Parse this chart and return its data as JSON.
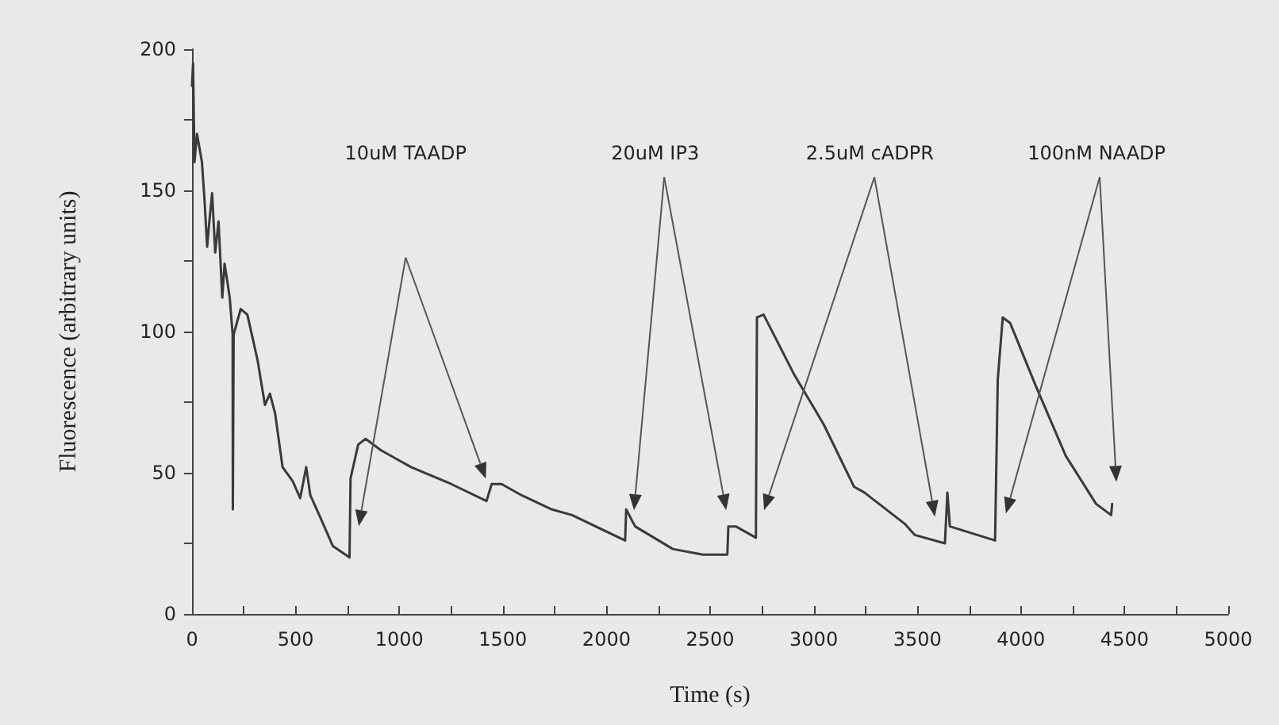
{
  "chart_data": {
    "type": "line",
    "xlabel": "Time (s)",
    "ylabel": "Fluorescence (arbitrary units)",
    "x": [
      0,
      5,
      12,
      24,
      36,
      48,
      60,
      73,
      85,
      97,
      112,
      128,
      146,
      157,
      170,
      182,
      196,
      197,
      201,
      235,
      267,
      316,
      352,
      376,
      401,
      437,
      486,
      522,
      551,
      571,
      620,
      680,
      760,
      765,
      802,
      838,
      911,
      1057,
      1251,
      1421,
      1446,
      1494,
      1591,
      1737,
      1834,
      2090,
      2095,
      2138,
      2320,
      2466,
      2583,
      2588,
      2624,
      2721,
      2726,
      2758,
      2904,
      3049,
      3195,
      3244,
      3438,
      3487,
      3633,
      3645,
      3657,
      3875,
      3888,
      3912,
      3948,
      4070,
      4216,
      4362,
      4435,
      4440
    ],
    "series": [
      {
        "color": "#3a3a3a",
        "values": [
          187,
          195,
          160,
          170,
          165,
          160,
          147,
          130,
          140,
          149,
          128,
          139,
          112,
          124,
          118,
          112,
          99,
          37,
          99,
          108,
          106,
          90,
          74,
          78,
          71,
          52,
          47,
          41,
          52,
          42,
          34,
          24,
          20,
          48,
          60,
          62,
          58,
          52,
          46,
          40,
          46,
          46,
          42,
          37,
          35,
          26,
          37,
          31,
          23,
          21,
          21,
          31,
          31,
          27,
          105,
          106,
          85,
          67,
          45,
          43,
          32,
          28,
          25,
          43,
          31,
          26,
          83,
          105,
          103,
          81,
          56,
          39,
          35,
          39
        ]
      }
    ],
    "xlim": [
      0,
      5000
    ],
    "xticks": [
      0,
      {
        "value": 250,
        "label": null
      },
      500,
      {
        "value": 750,
        "label": null
      },
      1000,
      {
        "value": 1250,
        "label": null
      },
      1500,
      {
        "value": 1750,
        "label": null
      },
      2000,
      {
        "value": 2250,
        "label": null
      },
      2500,
      {
        "value": 2750,
        "label": null
      },
      3000,
      {
        "value": 3250,
        "label": null
      },
      3500,
      {
        "value": 3750,
        "label": null
      },
      4000,
      {
        "value": 4250,
        "label": null
      },
      4500,
      {
        "value": 4750,
        "label": null
      },
      5000
    ],
    "ylim": [
      0,
      200
    ],
    "yticks": [
      0,
      {
        "value": 25,
        "label": null
      },
      50,
      {
        "value": 75,
        "label": null
      },
      100,
      {
        "value": 125,
        "label": null
      },
      150,
      {
        "value": 175,
        "label": null
      },
      200
    ],
    "annotations": [
      "10uM TAADP",
      "20uM IP3",
      "2.5uM cADPR",
      "100nM NAADP"
    ],
    "grid": false,
    "marker": "none",
    "line_style": "solid"
  }
}
